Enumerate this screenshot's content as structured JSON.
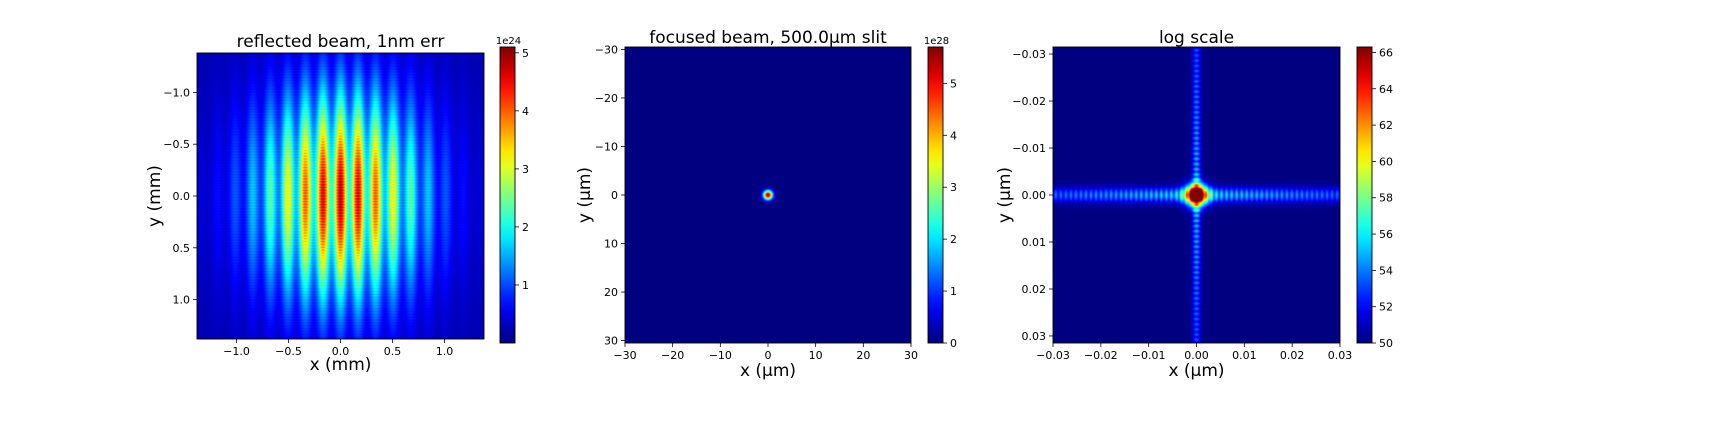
{
  "colors": {
    "jet": [
      "#00007f",
      "#0000ff",
      "#007fff",
      "#00ffff",
      "#7fff7f",
      "#ffff00",
      "#ff7f00",
      "#ff0000",
      "#7f0000"
    ],
    "background": "#ffffff"
  },
  "chart_data": [
    {
      "type": "heatmap",
      "title": "reflected beam, 1nm err",
      "xlabel": "x (mm)",
      "ylabel": "y (mm)",
      "xlim": [
        -1.38,
        1.38
      ],
      "ylim": [
        1.38,
        -1.38
      ],
      "xticks": [
        -1.0,
        -0.5,
        0.0,
        0.5,
        1.0
      ],
      "xticklabels": [
        "−1.0",
        "−0.5",
        "0.0",
        "0.5",
        "1.0"
      ],
      "yticks": [
        -1.0,
        -0.5,
        0.0,
        0.5,
        1.0
      ],
      "yticklabels": [
        "−1.0",
        "−0.5",
        "0.0",
        "0.5",
        "1.0"
      ],
      "colorbar": {
        "min": 0,
        "max": 5.1,
        "ticks": [
          1,
          2,
          3,
          4,
          5
        ],
        "ticklabels": [
          "1",
          "2",
          "3",
          "4",
          "5"
        ],
        "exponent": "1e24",
        "cmap": "jet"
      },
      "field": {
        "model": "broad elliptical beam with vertical fringe stripes and horizontal striations",
        "peak": 5.1,
        "peak_regions": [
          [
            -0.17,
            0.0
          ],
          [
            0.17,
            0.0
          ]
        ],
        "sigma_x": 0.55,
        "sigma_y": 0.7,
        "background_level": 0.25
      }
    },
    {
      "type": "heatmap",
      "title": "focused beam, 500.0μm slit",
      "xlabel": "x (μm)",
      "ylabel": "y (μm)",
      "xlim": [
        -30,
        30
      ],
      "ylim": [
        30.5,
        -30.5
      ],
      "xticks": [
        -30,
        -20,
        -10,
        0,
        10,
        20,
        30
      ],
      "xticklabels": [
        "−30",
        "−20",
        "−10",
        "0",
        "10",
        "20",
        "30"
      ],
      "yticks": [
        -30,
        -20,
        -10,
        0,
        10,
        20,
        30
      ],
      "yticklabels": [
        "−30",
        "−20",
        "−10",
        "0",
        "10",
        "20",
        "30"
      ],
      "colorbar": {
        "min": 0,
        "max": 5.7,
        "ticks": [
          0,
          1,
          2,
          3,
          4,
          5
        ],
        "ticklabels": [
          "0",
          "1",
          "2",
          "3",
          "4",
          "5"
        ],
        "exponent": "1e28",
        "cmap": "jet"
      },
      "field": {
        "model": "small bright focal spot at origin",
        "peak": 5.7,
        "center": [
          0,
          0
        ],
        "radius": 1.0
      }
    },
    {
      "type": "heatmap",
      "title": "log scale",
      "xlabel": "x (μm)",
      "ylabel": "y (μm)",
      "xlim": [
        -0.03,
        0.03
      ],
      "ylim": [
        0.0315,
        -0.0315
      ],
      "xticks": [
        -0.03,
        -0.02,
        -0.01,
        0.0,
        0.01,
        0.02,
        0.03
      ],
      "xticklabels": [
        "−0.03",
        "−0.02",
        "−0.01",
        "0.00",
        "0.01",
        "0.02",
        "0.03"
      ],
      "yticks": [
        -0.03,
        -0.02,
        -0.01,
        0.0,
        0.01,
        0.02,
        0.03
      ],
      "yticklabels": [
        "−0.03",
        "−0.02",
        "−0.01",
        "0.00",
        "0.01",
        "0.02",
        "0.03"
      ],
      "colorbar": {
        "min": 50,
        "max": 66.3,
        "ticks": [
          50,
          52,
          54,
          56,
          58,
          60,
          62,
          64,
          66
        ],
        "ticklabels": [
          "50",
          "52",
          "54",
          "56",
          "58",
          "60",
          "62",
          "64",
          "66"
        ],
        "exponent": "",
        "cmap": "jet"
      },
      "field": {
        "model": "cross-shaped sinc-squared diffraction pattern, log intensity",
        "peak": 66.3,
        "floor": 50,
        "center": [
          0,
          0
        ],
        "fringe_period_x": 0.0021,
        "fringe_period_y": 0.0011
      }
    }
  ]
}
